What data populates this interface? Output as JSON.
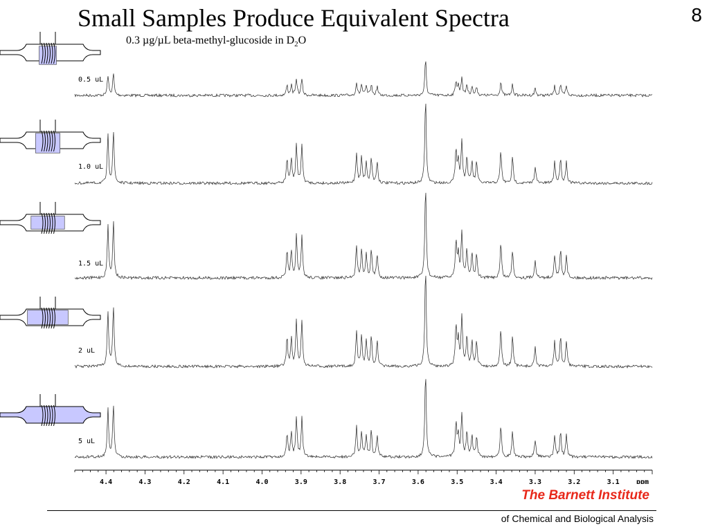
{
  "slide": {
    "title": "Small Samples Produce Equivalent Spectra",
    "number": "8",
    "subtitle_main": "0.3 µg/µL beta-methyl-glucoside in D",
    "subtitle_sub": "2",
    "subtitle_tail": "O"
  },
  "footer": {
    "institute": "The Barnett Institute",
    "institute_sub": "of Chemical and Biological Analysis"
  },
  "colors": {
    "accent": "#e8281a",
    "sample_fill": "#c8c8ff",
    "trace": "#222222"
  },
  "chart_data": {
    "type": "line",
    "xlabel": "ppm",
    "xlim": [
      4.48,
      3.0
    ],
    "x_reversed": true,
    "ticks": [
      "4.4",
      "4.3",
      "4.2",
      "4.1",
      "4.0",
      "3.9",
      "3.8",
      "3.7",
      "3.6",
      "3.5",
      "3.4",
      "3.3",
      "3.2",
      "3.1"
    ],
    "tick_values": [
      4.4,
      4.3,
      4.2,
      4.1,
      4.0,
      3.9,
      3.8,
      3.7,
      3.6,
      3.5,
      3.4,
      3.3,
      3.2,
      3.1
    ],
    "peaks_ppm": [
      [
        4.395,
        0.55
      ],
      [
        4.381,
        0.6
      ],
      [
        3.936,
        0.28
      ],
      [
        3.925,
        0.28
      ],
      [
        3.912,
        0.45
      ],
      [
        3.898,
        0.45
      ],
      [
        3.758,
        0.35
      ],
      [
        3.745,
        0.3
      ],
      [
        3.733,
        0.25
      ],
      [
        3.72,
        0.3
      ],
      [
        3.705,
        0.25
      ],
      [
        3.581,
        1.0
      ],
      [
        3.503,
        0.4
      ],
      [
        3.497,
        0.25
      ],
      [
        3.488,
        0.5
      ],
      [
        3.475,
        0.3
      ],
      [
        3.462,
        0.25
      ],
      [
        3.45,
        0.25
      ],
      [
        3.388,
        0.38
      ],
      [
        3.358,
        0.3
      ],
      [
        3.3,
        0.2
      ],
      [
        3.25,
        0.25
      ],
      [
        3.235,
        0.3
      ],
      [
        3.22,
        0.25
      ]
    ],
    "series": [
      {
        "name": "0.5 uL",
        "sample_fill_fraction": 0.25,
        "peak_scale": 0.35,
        "noise": 1.0
      },
      {
        "name": "1.0 uL",
        "sample_fill_fraction": 0.45,
        "peak_scale": 0.85,
        "noise": 1.0
      },
      {
        "name": "1.5 uL",
        "sample_fill_fraction": 0.7,
        "peak_scale": 0.95,
        "noise": 1.1
      },
      {
        "name": "2 uL",
        "sample_fill_fraction": 0.9,
        "peak_scale": 1.0,
        "noise": 1.0
      },
      {
        "name": "5 uL",
        "sample_fill_fraction": 1.0,
        "peak_scale": 1.05,
        "noise": 1.0
      }
    ]
  }
}
